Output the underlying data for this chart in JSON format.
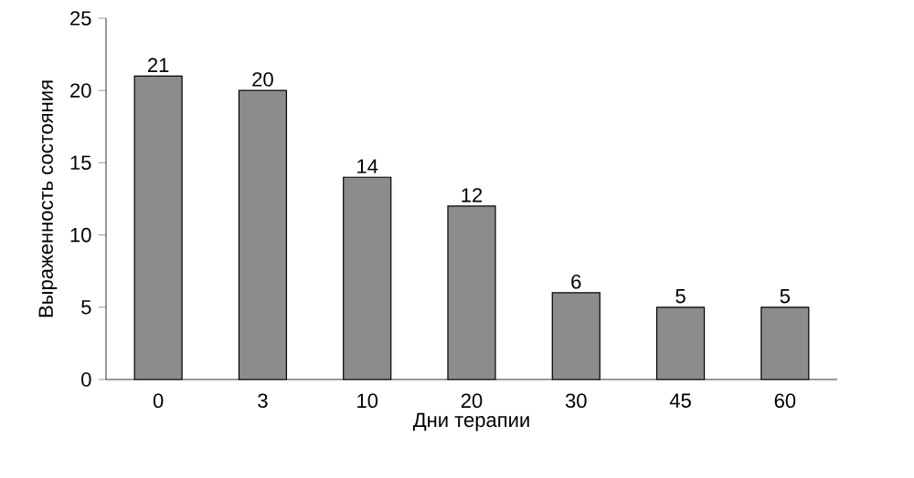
{
  "chart_data": {
    "type": "bar",
    "xlabel": "Дни терапии",
    "ylabel": "Выраженность состояния",
    "categories": [
      "0",
      "3",
      "10",
      "20",
      "30",
      "45",
      "60"
    ],
    "values": [
      21,
      20,
      14,
      12,
      6,
      5,
      5
    ],
    "color": "#8c8c8c",
    "ylim": [
      0,
      25
    ],
    "yticks": [
      0,
      5,
      10,
      15,
      20,
      25
    ],
    "data_labels": true,
    "grid": false
  }
}
